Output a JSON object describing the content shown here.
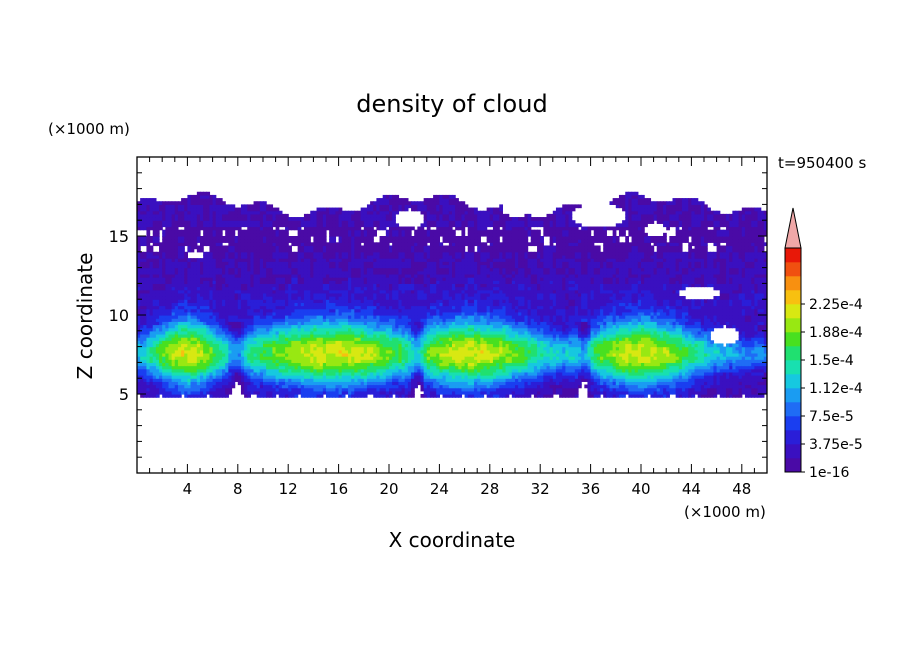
{
  "chart_data": {
    "type": "heatmap",
    "title": "density of cloud",
    "xlabel": "X coordinate",
    "ylabel": "Z coordinate",
    "x_unit": "(×1000 m)",
    "y_unit": "(×1000 m)",
    "time_label": "t=950400 s",
    "xlim": [
      0,
      50
    ],
    "ylim": [
      0,
      20
    ],
    "x_ticks": [
      "4",
      "8",
      "12",
      "16",
      "20",
      "24",
      "28",
      "32",
      "36",
      "40",
      "44",
      "48"
    ],
    "y_ticks": [
      "5",
      "10",
      "15"
    ],
    "colorbar": {
      "labels": [
        "1e-16",
        "3.75e-5",
        "7.5e-5",
        "1.12e-4",
        "1.5e-4",
        "1.88e-4",
        "2.25e-4"
      ],
      "colors": [
        "#4a0aa6",
        "#3a10c0",
        "#2a1ed8",
        "#1a3ef0",
        "#1f6cf5",
        "#1a9cf2",
        "#16c8e0",
        "#18e0b0",
        "#20e070",
        "#48e020",
        "#98e812",
        "#d8e812",
        "#f8c010",
        "#f89010",
        "#f05010",
        "#e81808"
      ],
      "over_color": "#f0a8a8"
    },
    "layers": {
      "cloud_base": 5.2,
      "cloud_top": 17.0,
      "dense_core": [
        7.0,
        9.0
      ]
    }
  }
}
